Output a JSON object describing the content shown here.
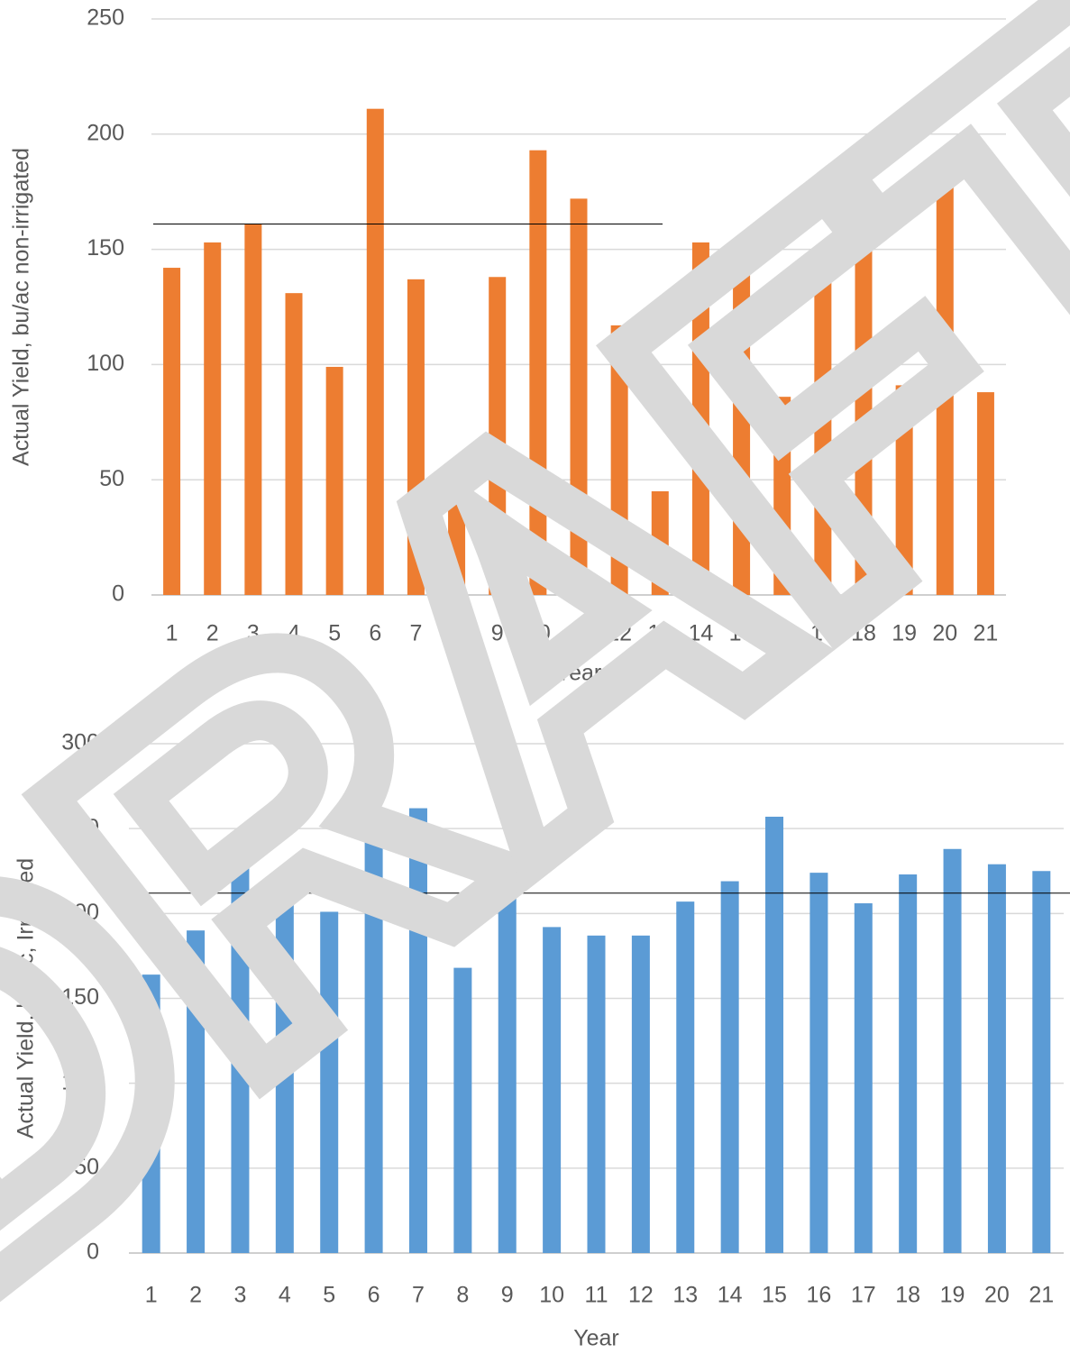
{
  "chart_data": [
    {
      "type": "bar",
      "y_label": "Actual Yield, bu/ac non-irrigated",
      "x_label": "Year",
      "categories": [
        "1",
        "2",
        "3",
        "4",
        "5",
        "6",
        "7",
        "8",
        "9",
        "10",
        "11",
        "12",
        "13",
        "14",
        "15",
        "16",
        "17",
        "18",
        "19",
        "20",
        "21"
      ],
      "values": [
        142,
        153,
        161,
        131,
        99,
        211,
        137,
        45,
        138,
        193,
        172,
        117,
        45,
        153,
        146,
        86,
        141,
        160,
        91,
        191,
        88
      ],
      "color": "#ed7d31",
      "ylim": [
        0,
        250
      ],
      "yticks": [
        0,
        50,
        100,
        150,
        200,
        250
      ],
      "grid": true,
      "reference_line": 161
    },
    {
      "type": "bar",
      "y_label": "Actual Yield, bu/ac, Irrigated",
      "x_label": "Year",
      "categories": [
        "1",
        "2",
        "3",
        "4",
        "5",
        "6",
        "7",
        "8",
        "9",
        "10",
        "11",
        "12",
        "13",
        "14",
        "15",
        "16",
        "17",
        "18",
        "19",
        "20",
        "21"
      ],
      "values": [
        164,
        190,
        231,
        226,
        201,
        247,
        262,
        168,
        236,
        192,
        187,
        187,
        207,
        219,
        257,
        224,
        206,
        223,
        238,
        229,
        225
      ],
      "color": "#5b9bd5",
      "ylim": [
        0,
        300
      ],
      "yticks": [
        0,
        50,
        100,
        150,
        200,
        250,
        300
      ],
      "grid": true,
      "reference_line": 212
    }
  ],
  "watermark": "DRAFT"
}
